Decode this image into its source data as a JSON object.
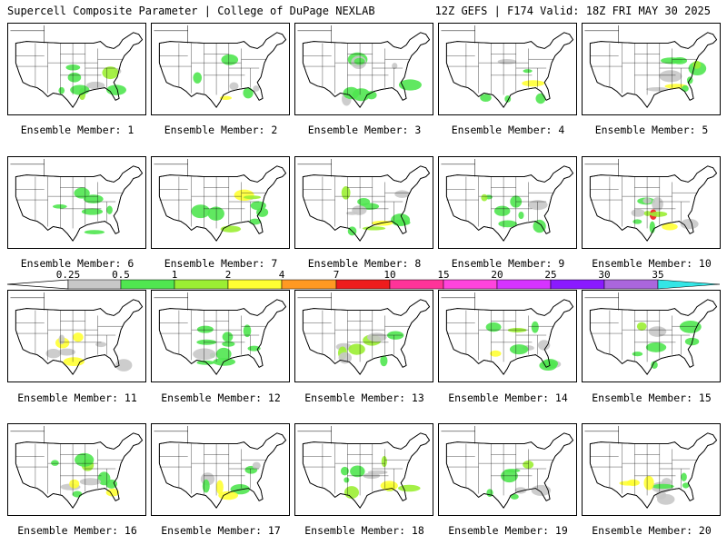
{
  "header": {
    "left": "Supercell Composite Parameter | College of DuPage NEXLAB",
    "right": "12Z GEFS | F174 Valid: 18Z FRI MAY 30 2025"
  },
  "colorbar": {
    "ticks": [
      "0.25",
      "0.5",
      "1",
      "2",
      "4",
      "7",
      "10",
      "15",
      "20",
      "25",
      "30",
      "35"
    ],
    "colors": [
      "#c8c8c8",
      "#50e650",
      "#9bee33",
      "#ffff33",
      "#ff9922",
      "#ee1c1c",
      "#ff3399",
      "#ff44dd",
      "#d633ff",
      "#8a1aff",
      "#aa66dd",
      "#33e6e6"
    ]
  },
  "panels": [
    {
      "label": "Ensemble Member: 1"
    },
    {
      "label": "Ensemble Member: 2"
    },
    {
      "label": "Ensemble Member: 3"
    },
    {
      "label": "Ensemble Member: 4"
    },
    {
      "label": "Ensemble Member: 5"
    },
    {
      "label": "Ensemble Member: 6"
    },
    {
      "label": "Ensemble Member: 7"
    },
    {
      "label": "Ensemble Member: 8"
    },
    {
      "label": "Ensemble Member: 9"
    },
    {
      "label": "Ensemble Member: 10"
    },
    {
      "label": "Ensemble Member: 11"
    },
    {
      "label": "Ensemble Member: 12"
    },
    {
      "label": "Ensemble Member: 13"
    },
    {
      "label": "Ensemble Member: 14"
    },
    {
      "label": "Ensemble Member: 15"
    },
    {
      "label": "Ensemble Member: 16"
    },
    {
      "label": "Ensemble Member: 17"
    },
    {
      "label": "Ensemble Member: 18"
    },
    {
      "label": "Ensemble Member: 19"
    },
    {
      "label": "Ensemble Member: 20"
    }
  ]
}
